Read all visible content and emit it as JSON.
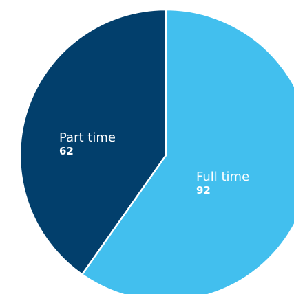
{
  "chart_data": {
    "type": "pie",
    "categories": [
      "Full time",
      "Part time"
    ],
    "values": [
      92,
      62
    ],
    "colors": [
      "#42bfee",
      "#023f6c"
    ],
    "label_colors": [
      "#111111",
      "#ffffff"
    ],
    "title": "",
    "legend": "none"
  }
}
